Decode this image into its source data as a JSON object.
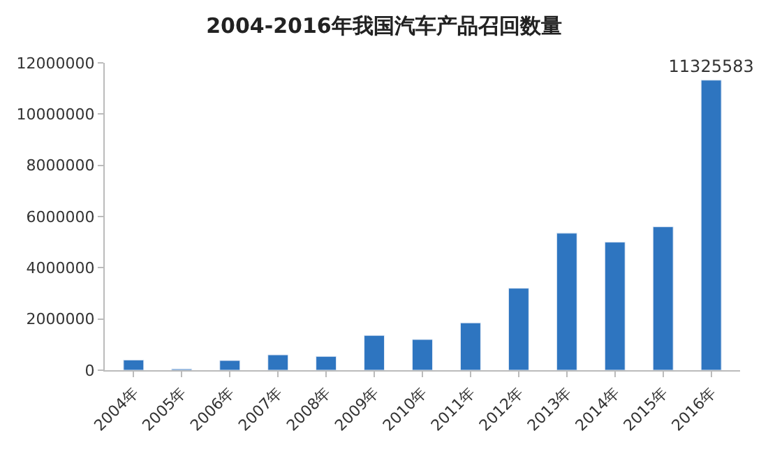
{
  "chart_data": {
    "type": "bar",
    "title": "2004-2016年我国汽车产品召回数量",
    "categories": [
      "2004年",
      "2005年",
      "2006年",
      "2007年",
      "2008年",
      "2009年",
      "2010年",
      "2011年",
      "2012年",
      "2013年",
      "2014年",
      "2015年",
      "2016年"
    ],
    "values": [
      400000,
      50000,
      380000,
      600000,
      540000,
      1360000,
      1200000,
      1850000,
      3200000,
      5350000,
      5000000,
      5600000,
      11325583
    ],
    "value_labels": [
      null,
      null,
      null,
      null,
      null,
      null,
      null,
      null,
      null,
      null,
      null,
      null,
      "11325583"
    ],
    "color": "#2e75c0",
    "ylim": [
      0,
      12000000
    ],
    "yticks": [
      0,
      2000000,
      4000000,
      6000000,
      8000000,
      10000000,
      12000000
    ],
    "grid": false,
    "legend": false
  }
}
